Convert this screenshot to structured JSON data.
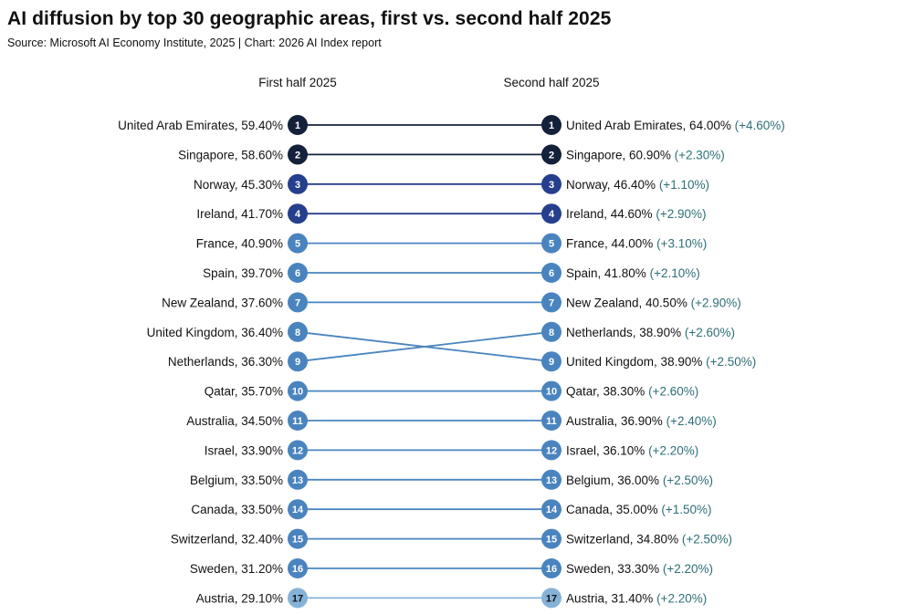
{
  "title": "AI diffusion by top 30 geographic areas, first vs. second half 2025",
  "subtitle": "Source: Microsoft AI Economy Institute, 2025 | Chart: 2026 AI Index report",
  "chart_data": {
    "type": "slope",
    "left_header": "First half 2025",
    "right_header": "Second half 2025",
    "unit": "%",
    "left": [
      {
        "rank": "1",
        "country": "United Arab Emirates",
        "value": "59.40%"
      },
      {
        "rank": "2",
        "country": "Singapore",
        "value": "58.60%"
      },
      {
        "rank": "3",
        "country": "Norway",
        "value": "45.30%"
      },
      {
        "rank": "4",
        "country": "Ireland",
        "value": "41.70%"
      },
      {
        "rank": "5",
        "country": "France",
        "value": "40.90%"
      },
      {
        "rank": "6",
        "country": "Spain",
        "value": "39.70%"
      },
      {
        "rank": "7",
        "country": "New Zealand",
        "value": "37.60%"
      },
      {
        "rank": "8",
        "country": "United Kingdom",
        "value": "36.40%"
      },
      {
        "rank": "9",
        "country": "Netherlands",
        "value": "36.30%"
      },
      {
        "rank": "10",
        "country": "Qatar",
        "value": "35.70%"
      },
      {
        "rank": "11",
        "country": "Australia",
        "value": "34.50%"
      },
      {
        "rank": "12",
        "country": "Israel",
        "value": "33.90%"
      },
      {
        "rank": "13",
        "country": "Belgium",
        "value": "33.50%"
      },
      {
        "rank": "14",
        "country": "Canada",
        "value": "33.50%"
      },
      {
        "rank": "15",
        "country": "Switzerland",
        "value": "32.40%"
      },
      {
        "rank": "16",
        "country": "Sweden",
        "value": "31.20%"
      },
      {
        "rank": "17",
        "country": "Austria",
        "value": "29.10%"
      }
    ],
    "right": [
      {
        "rank": "1",
        "country": "United Arab Emirates",
        "value": "64.00%",
        "change": "(+4.60%)"
      },
      {
        "rank": "2",
        "country": "Singapore",
        "value": "60.90%",
        "change": "(+2.30%)"
      },
      {
        "rank": "3",
        "country": "Norway",
        "value": "46.40%",
        "change": "(+1.10%)"
      },
      {
        "rank": "4",
        "country": "Ireland",
        "value": "44.60%",
        "change": "(+2.90%)"
      },
      {
        "rank": "5",
        "country": "France",
        "value": "44.00%",
        "change": "(+3.10%)"
      },
      {
        "rank": "6",
        "country": "Spain",
        "value": "41.80%",
        "change": "(+2.10%)"
      },
      {
        "rank": "7",
        "country": "New Zealand",
        "value": "40.50%",
        "change": "(+2.90%)"
      },
      {
        "rank": "8",
        "country": "Netherlands",
        "value": "38.90%",
        "change": "(+2.60%)"
      },
      {
        "rank": "9",
        "country": "United Kingdom",
        "value": "38.90%",
        "change": "(+2.50%)"
      },
      {
        "rank": "10",
        "country": "Qatar",
        "value": "38.30%",
        "change": "(+2.60%)"
      },
      {
        "rank": "11",
        "country": "Australia",
        "value": "36.90%",
        "change": "(+2.40%)"
      },
      {
        "rank": "12",
        "country": "Israel",
        "value": "36.10%",
        "change": "(+2.20%)"
      },
      {
        "rank": "13",
        "country": "Belgium",
        "value": "36.00%",
        "change": "(+2.50%)"
      },
      {
        "rank": "14",
        "country": "Canada",
        "value": "35.00%",
        "change": "(+1.50%)"
      },
      {
        "rank": "15",
        "country": "Switzerland",
        "value": "34.80%",
        "change": "(+2.50%)"
      },
      {
        "rank": "16",
        "country": "Sweden",
        "value": "33.30%",
        "change": "(+2.20%)"
      },
      {
        "rank": "17",
        "country": "Austria",
        "value": "31.40%",
        "change": "(+2.20%)"
      }
    ],
    "colors": {
      "tier_dark": "#14213b",
      "tier_navy": "#253f8c",
      "tier_mid": "#4a84bf",
      "tier_light": "#86b2d8",
      "change_text": "#2e6f78"
    }
  }
}
